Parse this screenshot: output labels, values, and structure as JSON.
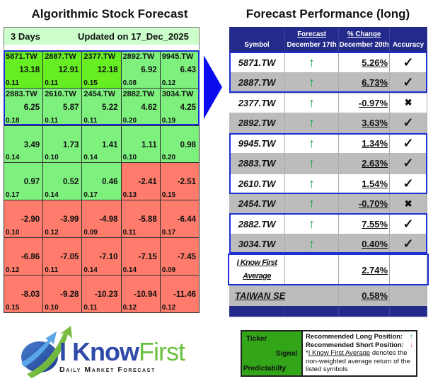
{
  "left": {
    "title": "Algorithmic Stock Forecast",
    "horizon": "3 Days",
    "updated": "Updated on 17_Dec_2025",
    "rows": [
      [
        {
          "symbol": "5871.TW",
          "signal": "13.18",
          "pred": "0.11",
          "color": "bright"
        },
        {
          "symbol": "2887.TW",
          "signal": "12.91",
          "pred": "0.11",
          "color": "bright"
        },
        {
          "symbol": "2377.TW",
          "signal": "12.18",
          "pred": "0.15",
          "color": "bright"
        },
        {
          "symbol": "2892.TW",
          "signal": "6.92",
          "pred": "0.08",
          "color": "light"
        },
        {
          "symbol": "9945.TW",
          "signal": "6.43",
          "pred": "0.12",
          "color": "light"
        }
      ],
      [
        {
          "symbol": "2883.TW",
          "signal": "6.25",
          "pred": "0.18",
          "color": "light"
        },
        {
          "symbol": "2610.TW",
          "signal": "5.87",
          "pred": "0.11",
          "color": "light"
        },
        {
          "symbol": "2454.TW",
          "signal": "5.22",
          "pred": "0.11",
          "color": "light"
        },
        {
          "symbol": "2882.TW",
          "signal": "4.62",
          "pred": "0.20",
          "color": "light"
        },
        {
          "symbol": "3034.TW",
          "signal": "4.25",
          "pred": "0.19",
          "color": "light"
        }
      ],
      [
        {
          "symbol": "",
          "signal": "3.49",
          "pred": "0.14",
          "color": "light"
        },
        {
          "symbol": "",
          "signal": "1.73",
          "pred": "0.10",
          "color": "light"
        },
        {
          "symbol": "",
          "signal": "1.41",
          "pred": "0.14",
          "color": "light"
        },
        {
          "symbol": "",
          "signal": "1.11",
          "pred": "0.10",
          "color": "light"
        },
        {
          "symbol": "",
          "signal": "0.98",
          "pred": "0.20",
          "color": "light"
        }
      ],
      [
        {
          "symbol": "",
          "signal": "0.97",
          "pred": "0.17",
          "color": "light"
        },
        {
          "symbol": "",
          "signal": "0.52",
          "pred": "0.14",
          "color": "light"
        },
        {
          "symbol": "",
          "signal": "0.46",
          "pred": "0.17",
          "color": "light"
        },
        {
          "symbol": "",
          "signal": "-2.41",
          "pred": "0.13",
          "color": "red"
        },
        {
          "symbol": "",
          "signal": "-2.51",
          "pred": "0.15",
          "color": "red"
        }
      ],
      [
        {
          "symbol": "",
          "signal": "-2.90",
          "pred": "0.10",
          "color": "red"
        },
        {
          "symbol": "",
          "signal": "-3.99",
          "pred": "0.12",
          "color": "red"
        },
        {
          "symbol": "",
          "signal": "-4.98",
          "pred": "0.09",
          "color": "red"
        },
        {
          "symbol": "",
          "signal": "-5.88",
          "pred": "0.11",
          "color": "red"
        },
        {
          "symbol": "",
          "signal": "-6.44",
          "pred": "0.17",
          "color": "red"
        }
      ],
      [
        {
          "symbol": "",
          "signal": "-6.86",
          "pred": "0.12",
          "color": "red"
        },
        {
          "symbol": "",
          "signal": "-7.05",
          "pred": "0.11",
          "color": "red"
        },
        {
          "symbol": "",
          "signal": "-7.10",
          "pred": "0.14",
          "color": "red"
        },
        {
          "symbol": "",
          "signal": "-7.15",
          "pred": "0.14",
          "color": "red"
        },
        {
          "symbol": "",
          "signal": "-7.45",
          "pred": "0.09",
          "color": "red"
        }
      ],
      [
        {
          "symbol": "",
          "signal": "-8.03",
          "pred": "0.15",
          "color": "red"
        },
        {
          "symbol": "",
          "signal": "-9.28",
          "pred": "0.10",
          "color": "red"
        },
        {
          "symbol": "",
          "signal": "-10.23",
          "pred": "0.11",
          "color": "red"
        },
        {
          "symbol": "",
          "signal": "-10.94",
          "pred": "0.12",
          "color": "red"
        },
        {
          "symbol": "",
          "signal": "-11.46",
          "pred": "0.12",
          "color": "red"
        }
      ]
    ]
  },
  "right": {
    "title": "Forecast Performance (long)",
    "headers": {
      "symbol": "Symbol",
      "forecast_top": "Forecast",
      "forecast_bottom": "December 17th",
      "change_top": "% Change",
      "change_bottom": "December 20th",
      "accuracy": "Accuracy"
    },
    "rows": [
      {
        "symbol": "5871.TW",
        "signal": "↑",
        "change": "5.26%",
        "accuracy": "✓",
        "shade": "white"
      },
      {
        "symbol": "2887.TW",
        "signal": "↑",
        "change": "6.73%",
        "accuracy": "✓",
        "shade": "grey"
      },
      {
        "symbol": "2377.TW",
        "signal": "↑",
        "change": "-0.97%",
        "accuracy": "✖",
        "shade": "white"
      },
      {
        "symbol": "2892.TW",
        "signal": "↑",
        "change": "3.63%",
        "accuracy": "✓",
        "shade": "grey"
      },
      {
        "symbol": "9945.TW",
        "signal": "↑",
        "change": "1.34%",
        "accuracy": "✓",
        "shade": "white"
      },
      {
        "symbol": "2883.TW",
        "signal": "↑",
        "change": "2.63%",
        "accuracy": "✓",
        "shade": "grey"
      },
      {
        "symbol": "2610.TW",
        "signal": "↑",
        "change": "1.54%",
        "accuracy": "✓",
        "shade": "white"
      },
      {
        "symbol": "2454.TW",
        "signal": "↑",
        "change": "-0.70%",
        "accuracy": "✖",
        "shade": "grey"
      },
      {
        "symbol": "2882.TW",
        "signal": "↑",
        "change": "7.55%",
        "accuracy": "✓",
        "shade": "white"
      },
      {
        "symbol": "3034.TW",
        "signal": "↑",
        "change": "0.40%",
        "accuracy": "✓",
        "shade": "grey"
      }
    ],
    "average": {
      "label_line1": "I Know First",
      "label_line2": "Average",
      "change": "2.74%"
    },
    "index": {
      "label": "TAIWAN SE",
      "change": "0.58%"
    }
  },
  "logo": {
    "i": "I ",
    "know": "Know",
    "first": "First",
    "tagline": "Daily Market Forecast"
  },
  "legend": {
    "ticker": "Ticker",
    "signal": "Signal",
    "predictability": "Predictabilty",
    "long": "Recommended Long Position:",
    "short": "Recommended Short Position:",
    "long_icon": "↑",
    "short_icon": "↓",
    "note_link": "I Know First Average",
    "note_prefix": "*",
    "note_rest": " denotes the non-weighted average return of the listed symbols"
  },
  "colors": {
    "bright": "#66ee22",
    "light": "#7ef07e",
    "red": "#ff7b6b",
    "navy": "#232a8a",
    "highlight": "#1d2fd4",
    "up": "#1aa64a",
    "down": "#e03a3a"
  }
}
